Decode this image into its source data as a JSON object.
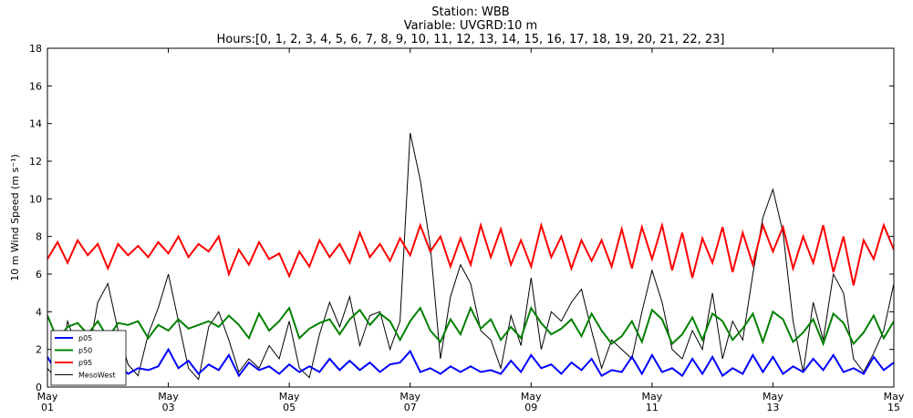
{
  "chart_data": {
    "type": "line",
    "title": [
      "Station: WBB",
      "Variable: UVGRD:10 m",
      "Hours:[0, 1, 2, 3, 4, 5, 6, 7, 8, 9, 10, 11, 12, 13, 14, 15, 16, 17, 18, 19, 20, 21, 22, 23]"
    ],
    "ylabel": "10 m Wind Speed (m s⁻¹)",
    "xlim": [
      1,
      15
    ],
    "xticks": [
      {
        "value": 1,
        "label": "May 01"
      },
      {
        "value": 3,
        "label": "May 03"
      },
      {
        "value": 5,
        "label": "May 05"
      },
      {
        "value": 7,
        "label": "May 07"
      },
      {
        "value": 9,
        "label": "May 09"
      },
      {
        "value": 11,
        "label": "May 11"
      },
      {
        "value": 13,
        "label": "May 13"
      },
      {
        "value": 15,
        "label": "May 15"
      }
    ],
    "ylim": [
      0,
      18
    ],
    "yticks": [
      0,
      2,
      4,
      6,
      8,
      10,
      12,
      14,
      16,
      18
    ],
    "legend": "lower left",
    "x": [
      1,
      1.167,
      1.333,
      1.5,
      1.667,
      1.833,
      2,
      2.167,
      2.333,
      2.5,
      2.667,
      2.833,
      3,
      3.167,
      3.333,
      3.5,
      3.667,
      3.833,
      4,
      4.167,
      4.333,
      4.5,
      4.667,
      4.833,
      5,
      5.167,
      5.333,
      5.5,
      5.667,
      5.833,
      6,
      6.167,
      6.333,
      6.5,
      6.667,
      6.833,
      7,
      7.167,
      7.333,
      7.5,
      7.667,
      7.833,
      8,
      8.167,
      8.333,
      8.5,
      8.667,
      8.833,
      9,
      9.167,
      9.333,
      9.5,
      9.667,
      9.833,
      10,
      10.167,
      10.333,
      10.5,
      10.667,
      10.833,
      11,
      11.167,
      11.333,
      11.5,
      11.667,
      11.833,
      12,
      12.167,
      12.333,
      12.5,
      12.667,
      12.833,
      13,
      13.167,
      13.333,
      13.5,
      13.667,
      13.833,
      14,
      14.167,
      14.333,
      14.5,
      14.667,
      14.833,
      15
    ],
    "series": [
      {
        "name": "p05",
        "color": "#0000ff",
        "width": 2,
        "values": [
          1.6,
          0.7,
          1.1,
          0.8,
          1.0,
          1.8,
          0.8,
          1.2,
          0.7,
          1.0,
          0.9,
          1.1,
          2.0,
          1.0,
          1.4,
          0.7,
          1.2,
          0.9,
          1.7,
          0.6,
          1.3,
          0.9,
          1.1,
          0.7,
          1.2,
          0.8,
          1.1,
          0.8,
          1.5,
          0.9,
          1.4,
          0.9,
          1.3,
          0.8,
          1.2,
          1.3,
          1.9,
          0.8,
          1.0,
          0.7,
          1.1,
          0.8,
          1.1,
          0.8,
          0.9,
          0.7,
          1.4,
          0.8,
          1.7,
          1.0,
          1.2,
          0.7,
          1.3,
          0.9,
          1.5,
          0.6,
          0.9,
          0.8,
          1.6,
          0.7,
          1.7,
          0.8,
          1.0,
          0.6,
          1.5,
          0.7,
          1.6,
          0.6,
          1.0,
          0.7,
          1.7,
          0.8,
          1.6,
          0.7,
          1.1,
          0.8,
          1.5,
          0.9,
          1.7,
          0.8,
          1.0,
          0.7,
          1.6,
          0.9,
          1.3
        ]
      },
      {
        "name": "p50",
        "color": "#008000",
        "width": 2,
        "values": [
          3.8,
          2.5,
          3.2,
          3.4,
          2.8,
          3.5,
          2.6,
          3.4,
          3.3,
          3.5,
          2.6,
          3.3,
          3.0,
          3.6,
          3.1,
          3.3,
          3.5,
          3.2,
          3.8,
          3.3,
          2.6,
          3.9,
          3.0,
          3.5,
          4.2,
          2.6,
          3.1,
          3.4,
          3.6,
          2.8,
          3.6,
          4.1,
          3.3,
          3.9,
          3.5,
          2.5,
          3.5,
          4.2,
          3.0,
          2.4,
          3.6,
          2.8,
          4.2,
          3.1,
          3.6,
          2.5,
          3.2,
          2.6,
          4.2,
          3.4,
          2.8,
          3.1,
          3.6,
          2.7,
          3.9,
          3.0,
          2.3,
          2.7,
          3.5,
          2.4,
          4.1,
          3.6,
          2.3,
          2.8,
          3.7,
          2.5,
          3.9,
          3.5,
          2.5,
          3.1,
          3.9,
          2.4,
          4.0,
          3.6,
          2.4,
          2.9,
          3.6,
          2.3,
          3.9,
          3.4,
          2.3,
          2.9,
          3.8,
          2.6,
          3.5
        ]
      },
      {
        "name": "p95",
        "color": "#ff0000",
        "width": 2,
        "values": [
          6.8,
          7.7,
          6.6,
          7.8,
          7.0,
          7.6,
          6.3,
          7.6,
          7.0,
          7.5,
          6.9,
          7.7,
          7.1,
          8.0,
          6.9,
          7.6,
          7.2,
          8.0,
          6.0,
          7.3,
          6.5,
          7.7,
          6.8,
          7.1,
          5.9,
          7.2,
          6.4,
          7.8,
          6.9,
          7.6,
          6.6,
          8.2,
          6.9,
          7.6,
          6.7,
          7.9,
          7.0,
          8.6,
          7.2,
          8.0,
          6.4,
          7.9,
          6.5,
          8.6,
          6.9,
          8.4,
          6.5,
          7.8,
          6.4,
          8.6,
          6.9,
          8.0,
          6.3,
          7.8,
          6.7,
          7.8,
          6.4,
          8.4,
          6.3,
          8.5,
          6.8,
          8.6,
          6.2,
          8.2,
          5.8,
          7.9,
          6.6,
          8.5,
          6.1,
          8.2,
          6.5,
          8.6,
          7.2,
          8.5,
          6.3,
          8.0,
          6.6,
          8.6,
          6.1,
          8.0,
          5.4,
          7.8,
          6.8,
          8.6,
          7.3
        ]
      },
      {
        "name": "MesoWest",
        "color": "#000000",
        "width": 1,
        "values": [
          1.0,
          0.3,
          3.5,
          2.0,
          1.5,
          4.5,
          5.5,
          3.0,
          1.2,
          0.6,
          2.8,
          4.2,
          6.0,
          3.5,
          1.0,
          0.4,
          3.2,
          4.0,
          2.5,
          0.8,
          1.5,
          1.0,
          2.2,
          1.5,
          3.5,
          1.0,
          0.5,
          2.8,
          4.5,
          3.2,
          4.8,
          2.2,
          3.8,
          4.0,
          2.0,
          3.5,
          13.5,
          11.0,
          7.5,
          1.5,
          4.8,
          6.5,
          5.5,
          3.0,
          2.5,
          1.0,
          3.8,
          2.2,
          5.8,
          2.0,
          4.0,
          3.5,
          4.5,
          5.2,
          3.0,
          1.0,
          2.5,
          2.0,
          1.5,
          4.0,
          6.2,
          4.5,
          2.0,
          1.5,
          3.0,
          2.0,
          5.0,
          1.5,
          3.5,
          2.5,
          6.0,
          9.0,
          10.5,
          8.2,
          3.5,
          0.8,
          4.5,
          2.5,
          6.0,
          5.0,
          1.5,
          0.8,
          1.8,
          3.0,
          5.5
        ]
      }
    ]
  }
}
